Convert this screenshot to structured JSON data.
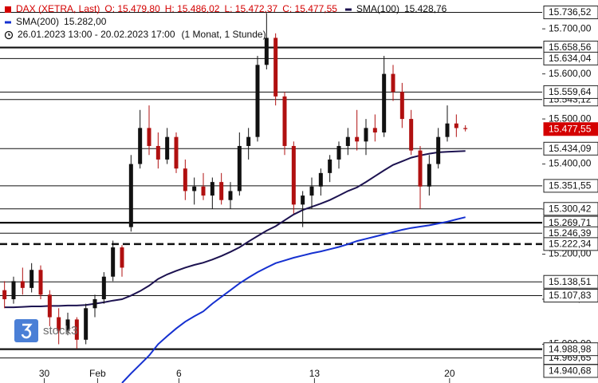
{
  "chart_data": {
    "type": "candlestick",
    "title": "DAX (XETRA, Last)",
    "ohlc_labels": [
      "O: 15.479,80",
      "H: 15.486,02",
      "L: 15.472,37",
      "C: 15.477,55"
    ],
    "period": "26.01.2023 13:00 - 20.02.2023 17:00",
    "interval": "(1 Monat, 1 Stunde)",
    "logo": "stock3",
    "title_color": "#d40000",
    "up_color": "#111111",
    "down_color": "#b01010",
    "xlim": [
      -0.5,
      59.5
    ],
    "xticks": [
      {
        "value": 4.4,
        "label": "30"
      },
      {
        "value": 10.3,
        "label": "Feb"
      },
      {
        "value": 19.3,
        "label": "6"
      },
      {
        "value": 34.3,
        "label": "13"
      },
      {
        "value": 49.25,
        "label": "20"
      }
    ],
    "ylim": [
      14914,
      15764
    ],
    "yticks": [
      {
        "value": 15700,
        "label": "15.700,00"
      },
      {
        "value": 15600,
        "label": "15.600,00"
      },
      {
        "value": 15500,
        "label": "15.500,00"
      },
      {
        "value": 15400,
        "label": "15.400,00"
      },
      {
        "value": 15300,
        "label": "15.300,00"
      },
      {
        "value": 15200,
        "label": "15.200,00"
      },
      {
        "value": 15100,
        "label": "15.100,00"
      },
      {
        "value": 15000,
        "label": "15.000,00"
      }
    ],
    "open": [
      15120,
      15100,
      15140,
      15125,
      15165,
      15110,
      15060,
      15030,
      15055,
      15010,
      15080,
      15100,
      15150,
      15215,
      15260,
      15400,
      15480,
      15440,
      15410,
      15460,
      15390,
      15340,
      15350,
      15330,
      15360,
      15320,
      15340,
      15440,
      15460,
      15620,
      15680,
      15550,
      15440,
      15310,
      15330,
      15350,
      15380,
      15410,
      15440,
      15460,
      15450,
      15480,
      15470,
      15600,
      15560,
      15500,
      15430,
      15350,
      15400,
      15460,
      15490,
      15479.8
    ],
    "high": [
      15140,
      15150,
      15170,
      15180,
      15175,
      15120,
      15080,
      15070,
      15060,
      15090,
      15110,
      15160,
      15230,
      15220,
      15420,
      15520,
      15530,
      15470,
      15480,
      15470,
      15410,
      15370,
      15380,
      15370,
      15380,
      15360,
      15470,
      15480,
      15640,
      15735,
      15690,
      15560,
      15450,
      15340,
      15370,
      15390,
      15420,
      15450,
      15480,
      15520,
      15500,
      15510,
      15640,
      15620,
      15580,
      15520,
      15440,
      15420,
      15480,
      15530,
      15510,
      15486.02
    ],
    "low": [
      15080,
      15090,
      15110,
      15115,
      15100,
      15040,
      15000,
      15020,
      14990,
      15000,
      15060,
      15090,
      15140,
      15150,
      15250,
      15390,
      15420,
      15390,
      15400,
      15380,
      15320,
      15310,
      15320,
      15300,
      15310,
      15300,
      15330,
      15410,
      15450,
      15610,
      15530,
      15420,
      15290,
      15260,
      15300,
      15330,
      15360,
      15390,
      15420,
      15430,
      15420,
      15450,
      15460,
      15540,
      15480,
      15420,
      15300,
      15330,
      15390,
      15450,
      15460,
      15472.37
    ],
    "close": [
      15100,
      15140,
      15125,
      15165,
      15110,
      15060,
      15030,
      15055,
      15010,
      15080,
      15100,
      15150,
      15215,
      15170,
      15400,
      15480,
      15440,
      15410,
      15460,
      15390,
      15340,
      15350,
      15330,
      15360,
      15320,
      15340,
      15440,
      15460,
      15620,
      15680,
      15550,
      15440,
      15310,
      15330,
      15350,
      15380,
      15410,
      15440,
      15460,
      15450,
      15480,
      15470,
      15600,
      15560,
      15500,
      15430,
      15350,
      15400,
      15460,
      15490,
      15479.8,
      15477.55
    ],
    "series": [
      {
        "name": "SMA(100)",
        "color": "#1c1250",
        "legend_value": "15.428,76",
        "values": [
          15082,
          15082,
          15083,
          15084,
          15084,
          15085,
          15085,
          15086,
          15086,
          15087,
          15090,
          15093,
          15097,
          15100,
          15108,
          15118,
          15130,
          15145,
          15155,
          15163,
          15170,
          15176,
          15181,
          15188,
          15196,
          15205,
          15215,
          15228,
          15240,
          15252,
          15262,
          15275,
          15288,
          15298,
          15305,
          15312,
          15320,
          15330,
          15340,
          15348,
          15360,
          15373,
          15386,
          15398,
          15406,
          15414,
          15419,
          15423,
          15426,
          15427,
          15428,
          15428.76
        ]
      },
      {
        "name": "SMA(200)",
        "color": "#1530d0",
        "legend_value": "15.282,00",
        "values": [
          null,
          null,
          null,
          null,
          null,
          null,
          null,
          null,
          null,
          null,
          null,
          null,
          null,
          14914,
          14935,
          14955,
          14975,
          15000,
          15018,
          15035,
          15050,
          15062,
          15073,
          15090,
          15105,
          15120,
          15135,
          15148,
          15160,
          15170,
          15180,
          15186,
          15192,
          15197,
          15202,
          15206,
          15211,
          15216,
          15222,
          15229,
          15234,
          15239,
          15244,
          15249,
          15254,
          15258,
          15261,
          15264,
          15268,
          15272,
          15277,
          15282
        ]
      }
    ],
    "levels": [
      {
        "value": 15736.52,
        "label": "15.736,52",
        "style": "thin"
      },
      {
        "value": 15658.56,
        "label": "15.658,56",
        "style": "thick"
      },
      {
        "value": 15634.04,
        "label": "15.634,04",
        "style": "thin"
      },
      {
        "value": 15543.12,
        "label": "15.543,12",
        "style": "thin"
      },
      {
        "value": 15559.64,
        "label": "15.559,64",
        "style": "thin"
      },
      {
        "value": 15477.55,
        "label": "15.477,55",
        "style": "current"
      },
      {
        "value": 15434.09,
        "label": "15.434,09",
        "style": "thin"
      },
      {
        "value": 15351.55,
        "label": "15.351,55",
        "style": "thin"
      },
      {
        "value": 15300.42,
        "label": "15.300,42",
        "style": "thin"
      },
      {
        "value": 15269.71,
        "label": "15.269,71",
        "style": "thick"
      },
      {
        "value": 15246.39,
        "label": "15.246,39",
        "style": "thin"
      },
      {
        "value": 15222.34,
        "label": "15.222,34",
        "style": "dashed"
      },
      {
        "value": 15138.51,
        "label": "15.138,51",
        "style": "thin"
      },
      {
        "value": 15107.83,
        "label": "15.107,83",
        "style": "thin"
      },
      {
        "value": 14969.65,
        "label": "14.969,65",
        "style": "thin"
      },
      {
        "value": 14988.98,
        "label": "14.988,98",
        "style": "thick"
      },
      {
        "value": 14940.68,
        "label": "14.940,68",
        "style": "none"
      }
    ]
  }
}
